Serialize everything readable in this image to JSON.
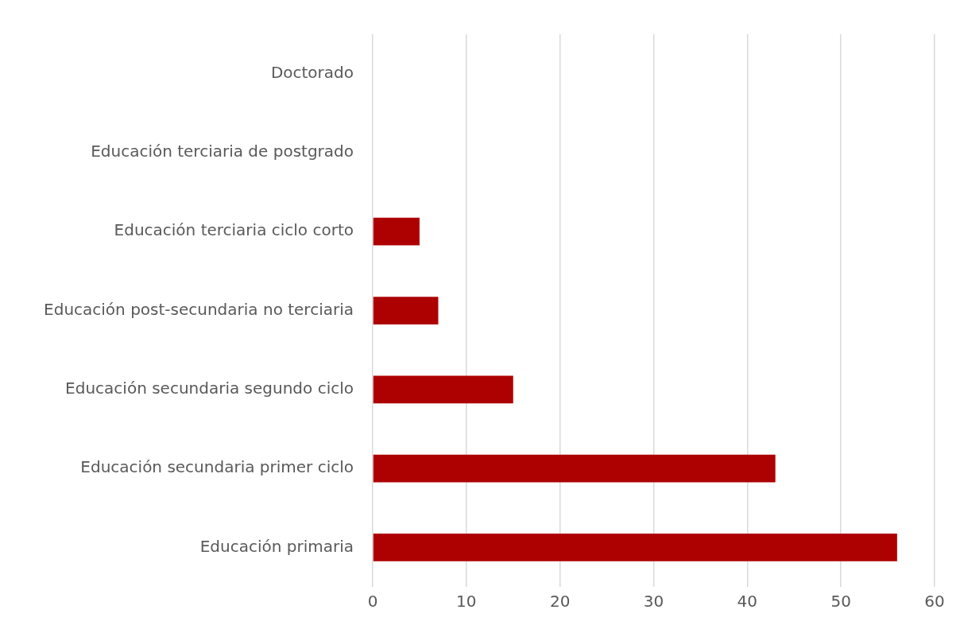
{
  "chart_data": {
    "type": "bar",
    "orientation": "horizontal",
    "categories": [
      "Doctorado",
      "Educación terciaria de postgrado",
      "Educación terciaria ciclo corto",
      "Educación post-secundaria no terciaria",
      "Educación secundaria segundo ciclo",
      "Educación secundaria primer ciclo",
      "Educación primaria"
    ],
    "values": [
      0,
      0,
      5,
      7,
      15,
      43,
      56
    ],
    "color": "#ad0000",
    "xlim": [
      0,
      60
    ],
    "xticks": [
      0,
      10,
      20,
      30,
      40,
      50,
      60
    ],
    "grid": "x",
    "legend": false
  }
}
